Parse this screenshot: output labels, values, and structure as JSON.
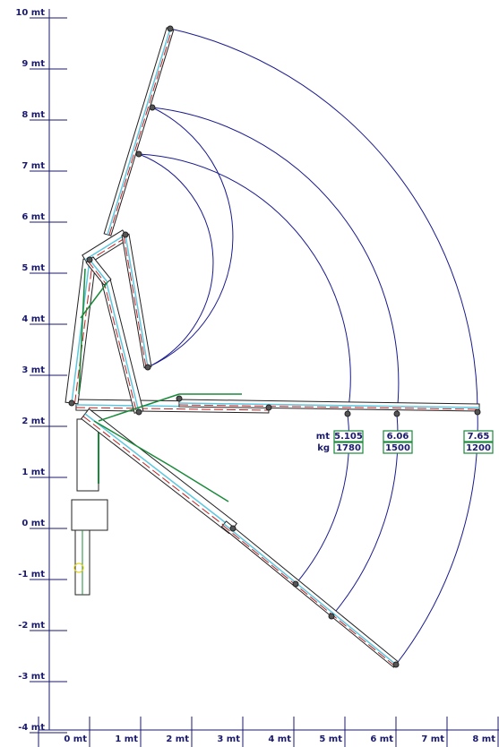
{
  "y_axis_labels": [
    "10 mt",
    "9 mt",
    "8 mt",
    "7 mt",
    "6 mt",
    "5 mt",
    "4 mt",
    "3 mt",
    "2 mt",
    "1 mt",
    "0 mt",
    "-1 mt",
    "-2 mt",
    "-3 mt",
    "-4 mt"
  ],
  "x_axis_labels": [
    "0 mt",
    "1 mt",
    "2 mt",
    "3 mt",
    "4 mt",
    "5 mt",
    "6 mt",
    "7 mt",
    "8 mt"
  ],
  "legend_units": [
    "mt",
    "kg"
  ],
  "load_points": [
    {
      "reach": "5.105",
      "load": "1780"
    },
    {
      "reach": "6.06",
      "load": "1500"
    },
    {
      "reach": "7.65",
      "load": "1200"
    }
  ]
}
